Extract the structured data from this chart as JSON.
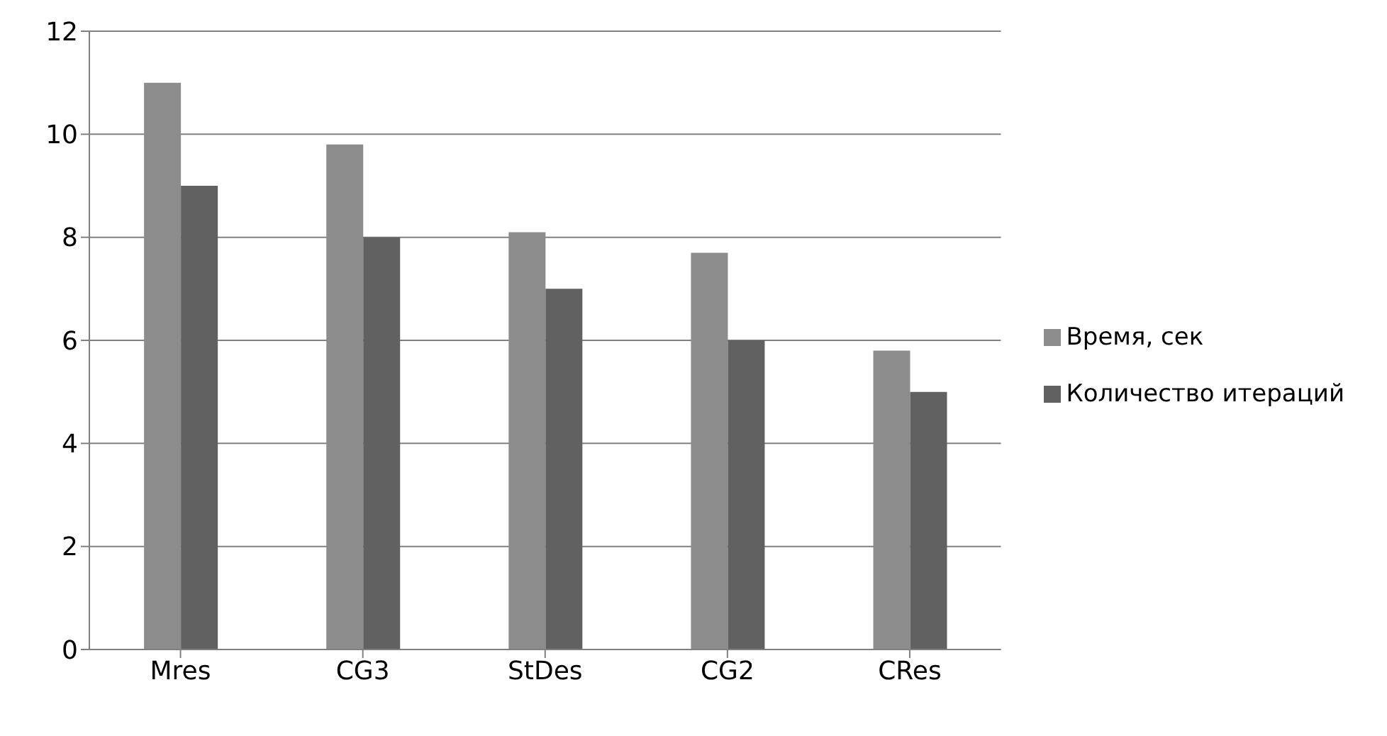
{
  "chart_data": {
    "type": "bar",
    "categories": [
      "Mres",
      "CG3",
      "StDes",
      "CG2",
      "CRes"
    ],
    "series": [
      {
        "name": "Время, сек",
        "color": "#8c8c8c",
        "values": [
          11,
          9.8,
          8.1,
          7.7,
          5.8
        ]
      },
      {
        "name": "Количество итераций",
        "color": "#616161",
        "values": [
          9,
          8,
          7,
          6,
          5
        ]
      }
    ],
    "ylim": [
      0,
      12
    ],
    "yticks": [
      0,
      2,
      4,
      6,
      8,
      10,
      12
    ],
    "grid": "y",
    "legend": "right"
  }
}
